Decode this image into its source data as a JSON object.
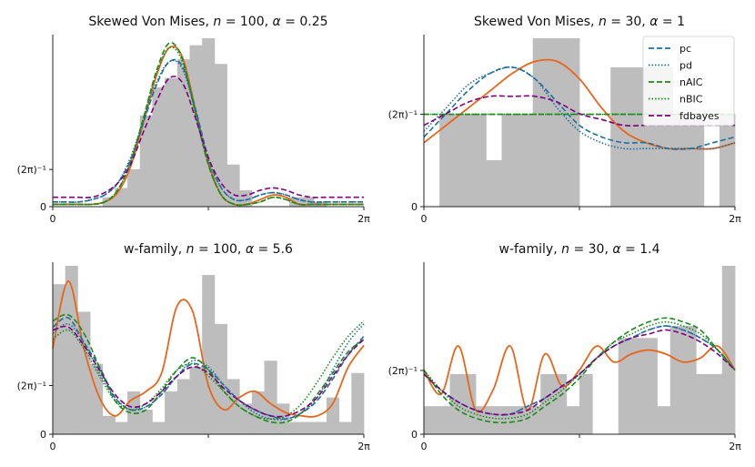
{
  "legend": {
    "entries": [
      {
        "name": "pc",
        "color": "#1f6f9f",
        "dash": "6,3"
      },
      {
        "name": "pd",
        "color": "#1f6f9f",
        "dash": "1.5,2"
      },
      {
        "name": "nAIC",
        "color": "#1a8a1a",
        "dash": "6,3"
      },
      {
        "name": "nBIC",
        "color": "#1a8a1a",
        "dash": "1.5,2"
      },
      {
        "name": "fdbayes",
        "color": "#800080",
        "dash": "6,3"
      }
    ],
    "placement": "top-right"
  },
  "truth_color": "#e8661a",
  "hist_color": "#bdbdbd",
  "chart_data": [
    {
      "type": "line",
      "title": "Skewed Von Mises, n = 100, α = 0.25",
      "title_parts": {
        "lead": "Skewed Von Mises, ",
        "n_sym": "n",
        "n_val": " = 100, ",
        "a_sym": "α",
        "a_val": " = 0.25"
      },
      "xlim": [
        0,
        6.2832
      ],
      "ylim": [
        0,
        0.72
      ],
      "xticks": [
        {
          "v": 0,
          "label": "0"
        },
        {
          "v": 3.1416,
          "label": ""
        },
        {
          "v": 6.2832,
          "label": "2π"
        }
      ],
      "yticks": [
        {
          "v": 0,
          "label": "0"
        },
        {
          "v": 0.159,
          "label": "(2π)⁻¹"
        }
      ],
      "hist": [
        0,
        0,
        0,
        0,
        0.04,
        0.08,
        0.16,
        0.39,
        0.51,
        0.55,
        0.63,
        0.69,
        0.72,
        0.61,
        0.18,
        0.07,
        0,
        0,
        0,
        0.04,
        0.04,
        0.02,
        0,
        0,
        0
      ],
      "series": [
        {
          "name": "truth",
          "values": [
            0.01,
            0.01,
            0.01,
            0.01,
            0.02,
            0.06,
            0.17,
            0.36,
            0.56,
            0.68,
            0.64,
            0.42,
            0.19,
            0.05,
            0.01,
            0.01,
            0.03,
            0.05,
            0.04,
            0.01,
            0.01,
            0.01,
            0.01,
            0.01,
            0.01
          ]
        },
        {
          "name": "pc",
          "values": [
            0.02,
            0.02,
            0.02,
            0.03,
            0.05,
            0.1,
            0.2,
            0.36,
            0.52,
            0.62,
            0.6,
            0.42,
            0.21,
            0.08,
            0.03,
            0.03,
            0.05,
            0.06,
            0.05,
            0.03,
            0.02,
            0.02,
            0.02,
            0.02,
            0.02
          ]
        },
        {
          "name": "pd",
          "values": [
            0.02,
            0.02,
            0.02,
            0.03,
            0.05,
            0.1,
            0.21,
            0.37,
            0.53,
            0.62,
            0.59,
            0.41,
            0.2,
            0.08,
            0.03,
            0.03,
            0.05,
            0.06,
            0.05,
            0.03,
            0.02,
            0.02,
            0.02,
            0.02,
            0.02
          ]
        },
        {
          "name": "nAIC",
          "values": [
            0.01,
            0.01,
            0.01,
            0.01,
            0.02,
            0.07,
            0.19,
            0.38,
            0.58,
            0.7,
            0.63,
            0.4,
            0.18,
            0.05,
            0.01,
            0.01,
            0.02,
            0.04,
            0.03,
            0.01,
            0.01,
            0.01,
            0.01,
            0.01,
            0.01
          ]
        },
        {
          "name": "nBIC",
          "values": [
            0.01,
            0.01,
            0.01,
            0.01,
            0.02,
            0.07,
            0.19,
            0.38,
            0.57,
            0.68,
            0.62,
            0.4,
            0.18,
            0.05,
            0.01,
            0.01,
            0.02,
            0.04,
            0.03,
            0.01,
            0.01,
            0.01,
            0.01,
            0.01,
            0.01
          ]
        },
        {
          "name": "fdbayes",
          "values": [
            0.04,
            0.04,
            0.04,
            0.04,
            0.06,
            0.1,
            0.18,
            0.32,
            0.45,
            0.55,
            0.53,
            0.38,
            0.21,
            0.1,
            0.05,
            0.05,
            0.07,
            0.08,
            0.07,
            0.05,
            0.04,
            0.04,
            0.04,
            0.04,
            0.04
          ]
        }
      ]
    },
    {
      "type": "line",
      "title": "Skewed Von Mises, n = 30, α = 1",
      "title_parts": {
        "lead": "Skewed Von Mises, ",
        "n_sym": "n",
        "n_val": " = 30, ",
        "a_sym": "α",
        "a_val": " = 1"
      },
      "xlim": [
        0,
        6.2832
      ],
      "ylim": [
        0,
        0.29
      ],
      "xticks": [
        {
          "v": 0,
          "label": "0"
        },
        {
          "v": 3.1416,
          "label": ""
        },
        {
          "v": 6.2832,
          "label": "2π"
        }
      ],
      "yticks": [
        {
          "v": 0,
          "label": "0"
        },
        {
          "v": 0.159,
          "label": "(2π)⁻¹"
        }
      ],
      "hist": [
        0,
        0.16,
        0.16,
        0.16,
        0.08,
        0.16,
        0.16,
        0.29,
        0.29,
        0.29,
        0,
        0,
        0.24,
        0.24,
        0.24,
        0.24,
        0.16,
        0.16,
        0,
        0.16
      ],
      "series": [
        {
          "name": "truth",
          "values": [
            0.11,
            0.14,
            0.17,
            0.2,
            0.23,
            0.25,
            0.25,
            0.22,
            0.17,
            0.13,
            0.11,
            0.1,
            0.1,
            0.1,
            0.11
          ]
        },
        {
          "name": "pc",
          "values": [
            0.12,
            0.16,
            0.2,
            0.23,
            0.24,
            0.22,
            0.18,
            0.14,
            0.12,
            0.11,
            0.11,
            0.1,
            0.1,
            0.11,
            0.12
          ]
        },
        {
          "name": "pd",
          "values": [
            0.13,
            0.17,
            0.21,
            0.23,
            0.24,
            0.22,
            0.17,
            0.13,
            0.11,
            0.1,
            0.1,
            0.1,
            0.1,
            0.1,
            0.11
          ]
        },
        {
          "name": "nAIC",
          "values": [
            0.159,
            0.159,
            0.159,
            0.159,
            0.159,
            0.159,
            0.159,
            0.159,
            0.159,
            0.159,
            0.159,
            0.159,
            0.159,
            0.159,
            0.159
          ]
        },
        {
          "name": "nBIC",
          "values": [
            0.159,
            0.159,
            0.159,
            0.159,
            0.159,
            0.159,
            0.159,
            0.159,
            0.159,
            0.159,
            0.159,
            0.159,
            0.159,
            0.159,
            0.159
          ]
        },
        {
          "name": "fdbayes",
          "values": [
            0.14,
            0.16,
            0.18,
            0.19,
            0.19,
            0.19,
            0.18,
            0.16,
            0.15,
            0.14,
            0.14,
            0.14,
            0.14,
            0.14,
            0.14
          ]
        }
      ]
    },
    {
      "type": "line",
      "title": "w-family, n = 100, α = 5.6",
      "title_parts": {
        "lead": "w-family, ",
        "n_sym": "n",
        "n_val": " = 100, ",
        "a_sym": "α",
        "a_val": " = 5.6"
      },
      "xlim": [
        0,
        6.2832
      ],
      "ylim": [
        0,
        0.55
      ],
      "xticks": [
        {
          "v": 0,
          "label": "0"
        },
        {
          "v": 3.1416,
          "label": ""
        },
        {
          "v": 6.2832,
          "label": "2π"
        }
      ],
      "yticks": [
        {
          "v": 0,
          "label": "0"
        },
        {
          "v": 0.159,
          "label": "(2π)⁻¹"
        }
      ],
      "hist": [
        0.49,
        0.55,
        0.4,
        0.23,
        0.06,
        0.04,
        0.14,
        0.08,
        0.04,
        0.14,
        0.18,
        0.22,
        0.52,
        0.36,
        0.18,
        0.1,
        0.14,
        0.24,
        0.1,
        0.04,
        0.04,
        0.04,
        0.12,
        0.04,
        0.2
      ],
      "series": [
        {
          "name": "truth",
          "values": [
            0.28,
            0.5,
            0.28,
            0.12,
            0.06,
            0.11,
            0.14,
            0.2,
            0.42,
            0.4,
            0.16,
            0.08,
            0.12,
            0.14,
            0.1,
            0.07,
            0.06,
            0.06,
            0.1,
            0.22,
            0.29
          ]
        },
        {
          "name": "pc",
          "values": [
            0.35,
            0.38,
            0.3,
            0.22,
            0.12,
            0.08,
            0.09,
            0.13,
            0.19,
            0.23,
            0.21,
            0.16,
            0.11,
            0.08,
            0.06,
            0.05,
            0.07,
            0.11,
            0.18,
            0.26,
            0.32
          ]
        },
        {
          "name": "pd",
          "values": [
            0.33,
            0.36,
            0.3,
            0.2,
            0.12,
            0.08,
            0.09,
            0.13,
            0.19,
            0.24,
            0.22,
            0.16,
            0.11,
            0.07,
            0.05,
            0.05,
            0.07,
            0.12,
            0.21,
            0.3,
            0.36
          ]
        },
        {
          "name": "nAIC",
          "values": [
            0.37,
            0.39,
            0.33,
            0.22,
            0.11,
            0.07,
            0.08,
            0.14,
            0.21,
            0.25,
            0.21,
            0.14,
            0.09,
            0.06,
            0.04,
            0.04,
            0.07,
            0.13,
            0.2,
            0.27,
            0.31
          ]
        },
        {
          "name": "nBIC",
          "values": [
            0.31,
            0.34,
            0.28,
            0.19,
            0.11,
            0.08,
            0.1,
            0.15,
            0.21,
            0.23,
            0.19,
            0.14,
            0.09,
            0.06,
            0.05,
            0.06,
            0.1,
            0.17,
            0.25,
            0.32,
            0.37
          ]
        },
        {
          "name": "fdbayes",
          "values": [
            0.34,
            0.35,
            0.29,
            0.21,
            0.13,
            0.09,
            0.1,
            0.14,
            0.19,
            0.22,
            0.2,
            0.15,
            0.11,
            0.08,
            0.06,
            0.06,
            0.08,
            0.12,
            0.19,
            0.26,
            0.31
          ]
        }
      ]
    },
    {
      "type": "line",
      "title": "w-family, n = 30, α = 1.4",
      "title_parts": {
        "lead": "w-family, ",
        "n_sym": "n",
        "n_val": " = 30, ",
        "a_sym": "α",
        "a_val": " = 1.4"
      },
      "xlim": [
        0,
        6.2832
      ],
      "ylim": [
        0,
        0.42
      ],
      "xticks": [
        {
          "v": 0,
          "label": "0"
        },
        {
          "v": 3.1416,
          "label": ""
        },
        {
          "v": 6.2832,
          "label": "2π"
        }
      ],
      "yticks": [
        {
          "v": 0,
          "label": "0"
        },
        {
          "v": 0.159,
          "label": "(2π)⁻¹"
        }
      ],
      "hist": [
        0.07,
        0.07,
        0.15,
        0.15,
        0.07,
        0.07,
        0.07,
        0.07,
        0.07,
        0.15,
        0.15,
        0.07,
        0.15,
        0,
        0,
        0.24,
        0.24,
        0.24,
        0.07,
        0.27,
        0.27,
        0.15,
        0.15,
        0.42
      ],
      "series": [
        {
          "name": "truth",
          "values": [
            0.16,
            0.1,
            0.22,
            0.06,
            0.11,
            0.22,
            0.06,
            0.2,
            0.12,
            0.16,
            0.22,
            0.18,
            0.2,
            0.21,
            0.2,
            0.18,
            0.19,
            0.22,
            0.16
          ]
        },
        {
          "name": "pc",
          "values": [
            0.15,
            0.11,
            0.08,
            0.06,
            0.05,
            0.05,
            0.07,
            0.09,
            0.12,
            0.15,
            0.19,
            0.22,
            0.24,
            0.26,
            0.27,
            0.26,
            0.24,
            0.21,
            0.16
          ]
        },
        {
          "name": "pd",
          "values": [
            0.15,
            0.11,
            0.08,
            0.06,
            0.05,
            0.05,
            0.07,
            0.09,
            0.12,
            0.15,
            0.19,
            0.22,
            0.24,
            0.26,
            0.27,
            0.26,
            0.24,
            0.21,
            0.16
          ]
        },
        {
          "name": "nAIC",
          "values": [
            0.16,
            0.1,
            0.06,
            0.04,
            0.03,
            0.03,
            0.04,
            0.07,
            0.1,
            0.14,
            0.19,
            0.23,
            0.26,
            0.28,
            0.29,
            0.28,
            0.26,
            0.21,
            0.16
          ]
        },
        {
          "name": "nBIC",
          "values": [
            0.16,
            0.11,
            0.07,
            0.05,
            0.04,
            0.04,
            0.05,
            0.08,
            0.11,
            0.15,
            0.19,
            0.23,
            0.25,
            0.27,
            0.28,
            0.27,
            0.25,
            0.21,
            0.16
          ]
        },
        {
          "name": "fdbayes",
          "values": [
            0.15,
            0.11,
            0.08,
            0.06,
            0.05,
            0.05,
            0.06,
            0.09,
            0.12,
            0.15,
            0.19,
            0.22,
            0.24,
            0.25,
            0.26,
            0.25,
            0.23,
            0.2,
            0.16
          ]
        }
      ]
    }
  ]
}
